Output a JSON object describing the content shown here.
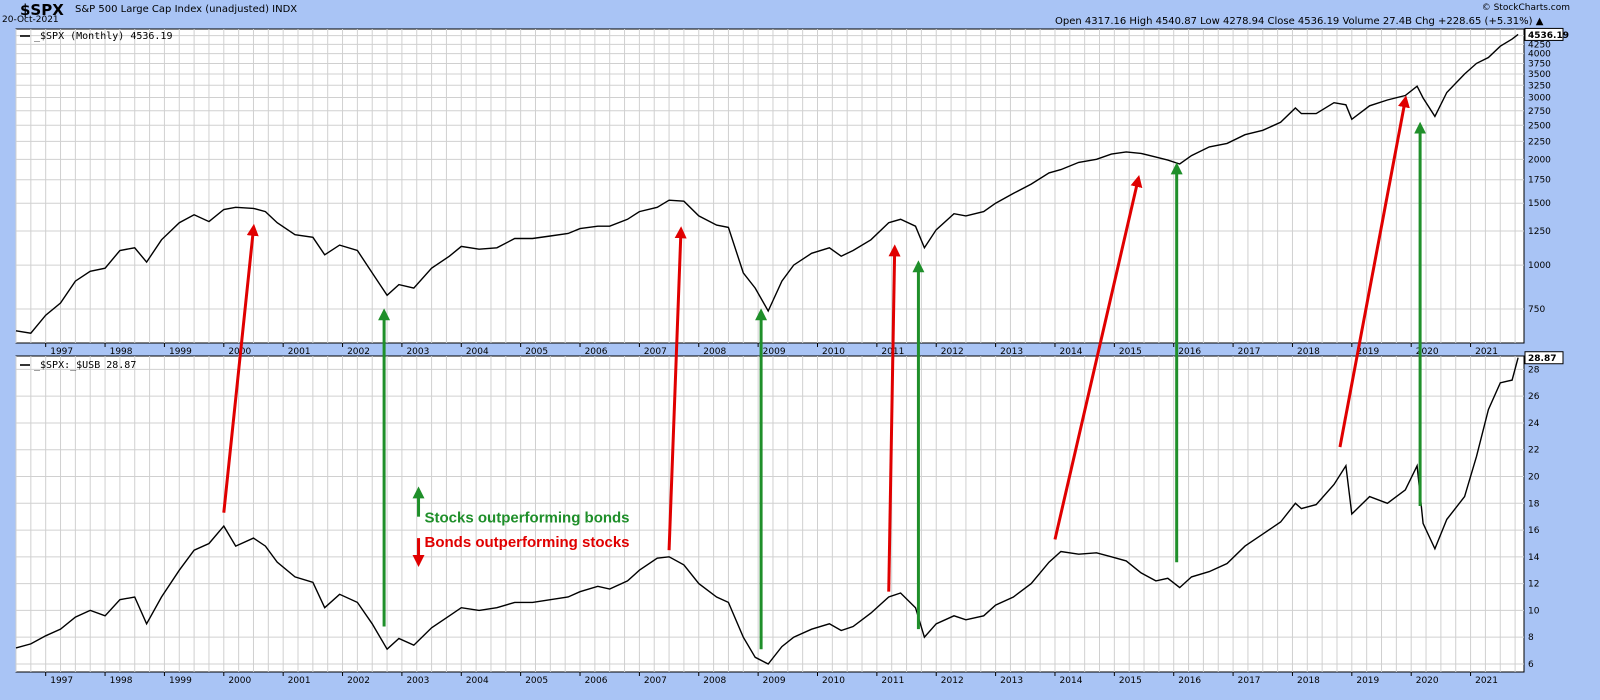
{
  "header": {
    "symbol": "$SPX",
    "name": "S&P 500 Large Cap Index (unadjusted)",
    "exchange": "INDX",
    "date": "20-Oct-2021",
    "credit": "© StockCharts.com",
    "ohlc": "Open 4317.16   High 4540.87   Low 4278.94   Close 4536.19   Volume 27.4B   Chg +228.65 (+5.31%)",
    "ohlc_direction": "up"
  },
  "colors": {
    "background": "#a9c4f5",
    "panel": "#ffffff",
    "grid": "#d0d0d0",
    "line": "#000000",
    "green_arrow": "#1f8f2a",
    "red_arrow": "#e00000"
  },
  "chart_data": [
    {
      "type": "line",
      "panel": "top",
      "legend": "_$SPX (Monthly) 4536.19",
      "last_value_label": "4536.19",
      "scale": "log",
      "grid": true,
      "ylim": [
        600,
        4700
      ],
      "xlim": [
        1996.5,
        2021.9
      ],
      "yticks": [
        750,
        1000,
        1250,
        1500,
        1750,
        2000,
        2250,
        2500,
        2750,
        3000,
        3250,
        3500,
        3750,
        4000,
        4250,
        4500
      ],
      "x": [
        1996.5,
        1996.75,
        1997.0,
        1997.25,
        1997.5,
        1997.75,
        1998.0,
        1998.25,
        1998.5,
        1998.7,
        1998.95,
        1999.25,
        1999.5,
        1999.75,
        2000.0,
        2000.2,
        2000.5,
        2000.7,
        2000.9,
        2001.2,
        2001.5,
        2001.7,
        2001.95,
        2002.25,
        2002.5,
        2002.75,
        2002.95,
        2003.2,
        2003.5,
        2003.8,
        2004.0,
        2004.3,
        2004.6,
        2004.9,
        2005.2,
        2005.5,
        2005.8,
        2006.0,
        2006.3,
        2006.5,
        2006.8,
        2007.0,
        2007.3,
        2007.5,
        2007.75,
        2008.0,
        2008.3,
        2008.5,
        2008.75,
        2008.95,
        2009.17,
        2009.4,
        2009.6,
        2009.9,
        2010.2,
        2010.4,
        2010.6,
        2010.9,
        2011.2,
        2011.4,
        2011.65,
        2011.8,
        2012.0,
        2012.3,
        2012.5,
        2012.8,
        2013.0,
        2013.3,
        2013.6,
        2013.9,
        2014.1,
        2014.4,
        2014.7,
        2014.95,
        2015.2,
        2015.45,
        2015.7,
        2015.9,
        2016.1,
        2016.3,
        2016.6,
        2016.9,
        2017.2,
        2017.5,
        2017.8,
        2018.05,
        2018.15,
        2018.4,
        2018.7,
        2018.9,
        2019.0,
        2019.3,
        2019.6,
        2019.9,
        2020.1,
        2020.2,
        2020.4,
        2020.6,
        2020.9,
        2021.1,
        2021.3,
        2021.5,
        2021.7,
        2021.8
      ],
      "y": [
        650,
        640,
        720,
        780,
        900,
        960,
        980,
        1100,
        1120,
        1020,
        1180,
        1320,
        1390,
        1330,
        1440,
        1460,
        1450,
        1420,
        1320,
        1220,
        1200,
        1070,
        1140,
        1100,
        950,
        820,
        880,
        860,
        980,
        1060,
        1130,
        1110,
        1120,
        1190,
        1190,
        1210,
        1230,
        1270,
        1290,
        1290,
        1350,
        1420,
        1460,
        1530,
        1520,
        1380,
        1300,
        1280,
        950,
        860,
        740,
        900,
        1000,
        1080,
        1120,
        1060,
        1100,
        1180,
        1320,
        1350,
        1290,
        1120,
        1260,
        1400,
        1380,
        1420,
        1500,
        1600,
        1700,
        1830,
        1870,
        1960,
        2000,
        2070,
        2100,
        2080,
        2030,
        1990,
        1940,
        2050,
        2170,
        2220,
        2350,
        2420,
        2550,
        2800,
        2700,
        2700,
        2900,
        2860,
        2600,
        2840,
        2950,
        3040,
        3230,
        2990,
        2650,
        3100,
        3500,
        3750,
        3900,
        4200,
        4400,
        4536
      ]
    },
    {
      "type": "line",
      "panel": "bottom",
      "legend": "_$SPX:_$USB 28.87",
      "last_value_label": "28.87",
      "grid": true,
      "ylim": [
        5.4,
        29.0
      ],
      "xlim": [
        1996.5,
        2021.9
      ],
      "yticks": [
        6,
        8,
        10,
        12,
        14,
        16,
        18,
        20,
        22,
        24,
        26,
        28
      ],
      "x": [
        1996.5,
        1996.75,
        1997.0,
        1997.25,
        1997.5,
        1997.75,
        1998.0,
        1998.25,
        1998.5,
        1998.7,
        1998.95,
        1999.25,
        1999.5,
        1999.75,
        2000.0,
        2000.2,
        2000.5,
        2000.7,
        2000.9,
        2001.2,
        2001.5,
        2001.7,
        2001.95,
        2002.25,
        2002.5,
        2002.75,
        2002.95,
        2003.2,
        2003.5,
        2003.8,
        2004.0,
        2004.3,
        2004.6,
        2004.9,
        2005.2,
        2005.5,
        2005.8,
        2006.0,
        2006.3,
        2006.5,
        2006.8,
        2007.0,
        2007.3,
        2007.5,
        2007.75,
        2008.0,
        2008.3,
        2008.5,
        2008.75,
        2008.95,
        2009.17,
        2009.4,
        2009.6,
        2009.9,
        2010.2,
        2010.4,
        2010.6,
        2010.9,
        2011.2,
        2011.4,
        2011.65,
        2011.8,
        2012.0,
        2012.3,
        2012.5,
        2012.8,
        2013.0,
        2013.3,
        2013.6,
        2013.9,
        2014.1,
        2014.4,
        2014.7,
        2014.95,
        2015.2,
        2015.45,
        2015.7,
        2015.9,
        2016.1,
        2016.3,
        2016.6,
        2016.9,
        2017.2,
        2017.5,
        2017.8,
        2018.05,
        2018.15,
        2018.4,
        2018.7,
        2018.9,
        2019.0,
        2019.3,
        2019.6,
        2019.9,
        2020.1,
        2020.2,
        2020.4,
        2020.6,
        2020.9,
        2021.1,
        2021.3,
        2021.5,
        2021.7,
        2021.8
      ],
      "y": [
        7.2,
        7.5,
        8.1,
        8.6,
        9.5,
        10.0,
        9.6,
        10.8,
        11.0,
        9.0,
        11.0,
        13.0,
        14.5,
        15.0,
        16.3,
        14.8,
        15.4,
        14.8,
        13.6,
        12.5,
        12.1,
        10.2,
        11.2,
        10.6,
        9.0,
        7.1,
        7.9,
        7.4,
        8.7,
        9.6,
        10.2,
        10.0,
        10.2,
        10.6,
        10.6,
        10.8,
        11.0,
        11.4,
        11.8,
        11.6,
        12.2,
        13.0,
        13.9,
        14.0,
        13.4,
        12.0,
        11.0,
        10.6,
        8.0,
        6.5,
        6.0,
        7.3,
        8.0,
        8.6,
        9.0,
        8.5,
        8.8,
        9.8,
        11.0,
        11.3,
        10.2,
        8.0,
        9.0,
        9.6,
        9.3,
        9.6,
        10.4,
        11.0,
        12.0,
        13.6,
        14.4,
        14.2,
        14.3,
        14.0,
        13.7,
        12.8,
        12.2,
        12.4,
        11.7,
        12.5,
        12.9,
        13.5,
        14.8,
        15.7,
        16.6,
        18.0,
        17.6,
        17.9,
        19.4,
        20.8,
        17.2,
        18.5,
        18.0,
        19.0,
        20.8,
        16.5,
        14.6,
        16.8,
        18.5,
        21.5,
        25.0,
        27.0,
        27.2,
        28.87
      ]
    }
  ],
  "x_axis": {
    "year_labels": [
      "1997",
      "1998",
      "1999",
      "2000",
      "2001",
      "2002",
      "2003",
      "2004",
      "2005",
      "2006",
      "2007",
      "2008",
      "2009",
      "2010",
      "2011",
      "2012",
      "2013",
      "2014",
      "2015",
      "2016",
      "2017",
      "2018",
      "2019",
      "2020",
      "2021"
    ]
  },
  "annotations": {
    "legend_green_text": "Stocks outperforming bonds",
    "legend_red_text": "Bonds outperforming stocks",
    "arrows": [
      {
        "color": "red",
        "from": {
          "panel": "bottom",
          "x": 2000.0,
          "y": 17.3
        },
        "to": {
          "panel": "top",
          "x": 2000.5,
          "y": 1270
        }
      },
      {
        "color": "green",
        "from": {
          "panel": "bottom",
          "x": 2002.7,
          "y": 8.8
        },
        "to": {
          "panel": "top",
          "x": 2002.7,
          "y": 730
        }
      },
      {
        "color": "red",
        "from": {
          "panel": "bottom",
          "x": 2007.5,
          "y": 14.5
        },
        "to": {
          "panel": "top",
          "x": 2007.7,
          "y": 1250
        }
      },
      {
        "color": "green",
        "from": {
          "panel": "bottom",
          "x": 2009.05,
          "y": 7.1
        },
        "to": {
          "panel": "top",
          "x": 2009.05,
          "y": 730
        }
      },
      {
        "color": "red",
        "from": {
          "panel": "bottom",
          "x": 2011.2,
          "y": 11.4
        },
        "to": {
          "panel": "top",
          "x": 2011.3,
          "y": 1110
        }
      },
      {
        "color": "green",
        "from": {
          "panel": "bottom",
          "x": 2011.7,
          "y": 8.6
        },
        "to": {
          "panel": "top",
          "x": 2011.7,
          "y": 1000
        }
      },
      {
        "color": "red",
        "from": {
          "panel": "bottom",
          "x": 2014.0,
          "y": 15.3
        },
        "to": {
          "panel": "top",
          "x": 2015.4,
          "y": 1750
        }
      },
      {
        "color": "green",
        "from": {
          "panel": "bottom",
          "x": 2016.05,
          "y": 13.6
        },
        "to": {
          "panel": "top",
          "x": 2016.05,
          "y": 1900
        }
      },
      {
        "color": "red",
        "from": {
          "panel": "bottom",
          "x": 2018.8,
          "y": 22.2
        },
        "to": {
          "panel": "top",
          "x": 2019.9,
          "y": 2950
        }
      },
      {
        "color": "green",
        "from": {
          "panel": "bottom",
          "x": 2020.15,
          "y": 17.8
        },
        "to": {
          "panel": "top",
          "x": 2020.15,
          "y": 2480
        }
      }
    ]
  }
}
